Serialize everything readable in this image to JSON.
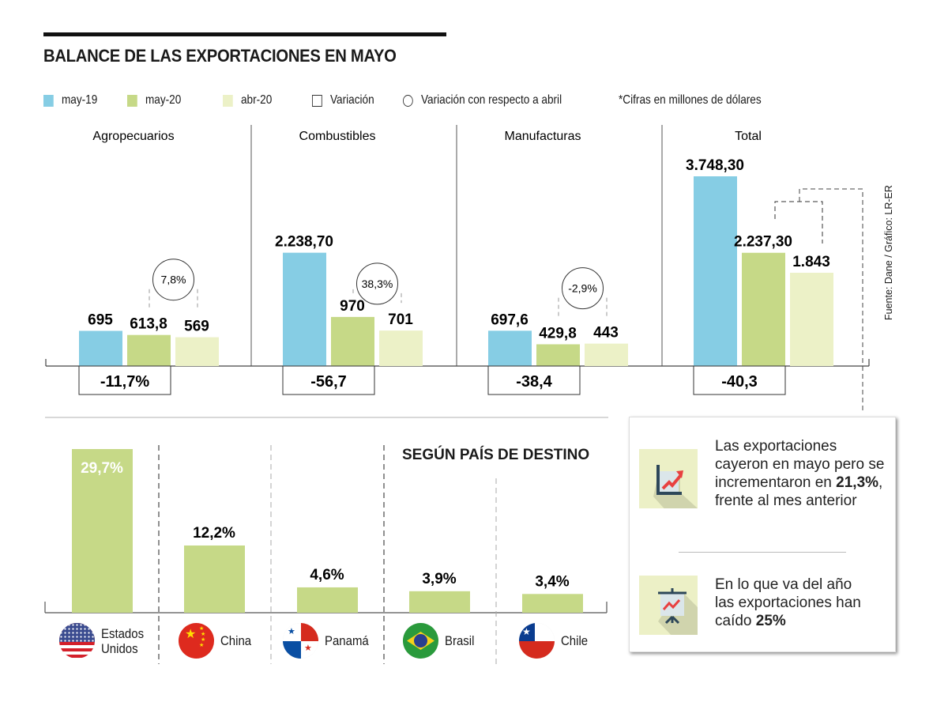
{
  "title": "BALANCE DE LAS EXPORTACIONES EN MAYO",
  "legend": {
    "items": [
      {
        "label": "may-19",
        "color": "#86cde4",
        "kind": "swatch"
      },
      {
        "label": "may-20",
        "color": "#c6d987",
        "kind": "swatch"
      },
      {
        "label": "abr-20",
        "color": "#ecf1c7",
        "kind": "swatch"
      },
      {
        "label": "Variación",
        "kind": "square"
      },
      {
        "label": "Variación con respecto a abril",
        "kind": "circle"
      }
    ],
    "note": "*Cifras en millones de dólares"
  },
  "source": "Fuente: Dane / Gráfico: LR-ER",
  "chart_data": [
    {
      "type": "bar",
      "title": "Balance de las exportaciones en mayo",
      "ylabel": "Millones de dólares",
      "categories": [
        "Agropecuarios",
        "Combustibles",
        "Manufacturas",
        "Total"
      ],
      "series": [
        {
          "name": "may-19",
          "color": "#86cde4",
          "values": [
            695,
            2238.7,
            697.6,
            3748.3
          ],
          "labels": [
            "695",
            "2.238,70",
            "697,6",
            "3.748,30"
          ]
        },
        {
          "name": "may-20",
          "color": "#c6d987",
          "values": [
            613.8,
            970,
            429.8,
            2237.3
          ],
          "labels": [
            "613,8",
            "970",
            "429,8",
            "2.237,30"
          ]
        },
        {
          "name": "abr-20",
          "color": "#ecf1c7",
          "values": [
            569,
            701,
            443,
            1843
          ],
          "labels": [
            "569",
            "701",
            "443",
            "1.843"
          ]
        }
      ],
      "variacion": [
        "-11,7%",
        "-56,7",
        "-38,4",
        "-40,3"
      ],
      "variacion_abril": [
        "7,8%",
        "38,3%",
        "-2,9%",
        null
      ],
      "ylim": [
        0,
        3748.3
      ]
    },
    {
      "type": "bar",
      "title": "SEGÚN PAÍS DE DESTINO",
      "categories": [
        "Estados Unidos",
        "China",
        "Panamá",
        "Brasil",
        "Chile"
      ],
      "values": [
        29.7,
        12.2,
        4.6,
        3.9,
        3.4
      ],
      "labels": [
        "29,7%",
        "12,2%",
        "4,6%",
        "3,9%",
        "3,4%"
      ],
      "color": "#c6d987",
      "ylim": [
        0,
        29.7
      ]
    }
  ],
  "countries": [
    {
      "line1": "Estados",
      "line2": "Unidos",
      "flag": "us-flag-icon"
    },
    {
      "line1": "China",
      "line2": "",
      "flag": "china-flag-icon"
    },
    {
      "line1": "Panamá",
      "line2": "",
      "flag": "panama-flag-icon"
    },
    {
      "line1": "Brasil",
      "line2": "",
      "flag": "brazil-flag-icon"
    },
    {
      "line1": "Chile",
      "line2": "",
      "flag": "chile-flag-icon"
    }
  ],
  "info": {
    "item1": {
      "pre": "Las exportaciones cayeron en mayo pero se incrementaron en ",
      "bold": "21,3%",
      "post": ", frente al mes anterior"
    },
    "item2": {
      "pre": "En lo que va del año las exportaciones han caído ",
      "bold": "25%",
      "post": ""
    }
  }
}
